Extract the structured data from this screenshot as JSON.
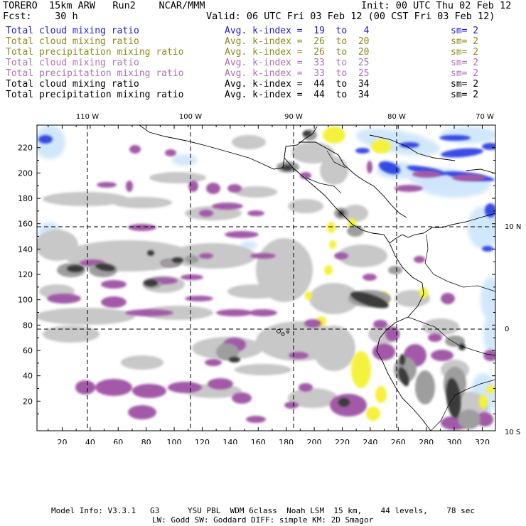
{
  "header": {
    "model": "TORERO  15km ARW   Run2    NCAR/MMM",
    "init": "Init: 00 UTC Thu 02 Feb 12",
    "fcst": "Fcst:    30 h",
    "valid": "Valid: 06 UTC Fri 03 Feb 12 (00 CST Fri 03 Feb 12)"
  },
  "legend": [
    {
      "variable": "Total cloud mixing ratio",
      "k_index": "Avg. k-index =  19  to   4",
      "sm": "sm= 2",
      "color": "#1c1ccc"
    },
    {
      "variable": "Total cloud mixing ratio",
      "k_index": "Avg. k-index =  26  to  20",
      "sm": "sm= 2",
      "color": "#8c8c1e"
    },
    {
      "variable": "Total precipitation mixing ratio",
      "k_index": "Avg. k-index =  26  to  20",
      "sm": "sm= 2",
      "color": "#8c8c1e"
    },
    {
      "variable": "Total cloud mixing ratio",
      "k_index": "Avg. k-index =  33  to  25",
      "sm": "sm= 2",
      "color": "#b070b8"
    },
    {
      "variable": "Total precipitation mixing ratio",
      "k_index": "Avg. k-index =  33  to  25",
      "sm": "sm= 2",
      "color": "#b070b8"
    },
    {
      "variable": "Total cloud mixing ratio",
      "k_index": "Avg. k-index =  44  to  34",
      "sm": "sm= 2",
      "color": "#000000"
    },
    {
      "variable": "Total precipitation mixing ratio",
      "k_index": "Avg. k-index =  44  to  34",
      "sm": "sm= 2",
      "color": "#000000"
    }
  ],
  "map": {
    "lon_labels": [
      "110 W",
      "100 W",
      "90 W",
      "80 W",
      "70 W"
    ],
    "lat_labels": [
      "10 N",
      "0",
      "10 S"
    ],
    "x_ticks": [
      "20",
      "40",
      "60",
      "80",
      "100",
      "120",
      "140",
      "160",
      "180",
      "200",
      "220",
      "240",
      "260",
      "280",
      "300",
      "320"
    ],
    "y_ticks": [
      "20",
      "40",
      "60",
      "80",
      "100",
      "120",
      "140",
      "160",
      "180",
      "200",
      "220"
    ],
    "colors": {
      "blue_cloud": "#1a2ee0",
      "light_blue": "#cfe6fb",
      "yellow": "#f5f23c",
      "purple": "#a25aa8",
      "light_gray": "#c8c8c8",
      "mid_gray": "#9e9e9e",
      "dark_gray": "#3a3a3a",
      "coast": "#000000"
    }
  },
  "footer": {
    "line1": "Model Info: V3.3.1   G3      YSU PBL  WDM 6class  Noah LSM  15 km,    44 levels,    78 sec",
    "line2": "LW: Godd SW: Goddard DIFF: simple KM: 2D Smagor"
  }
}
